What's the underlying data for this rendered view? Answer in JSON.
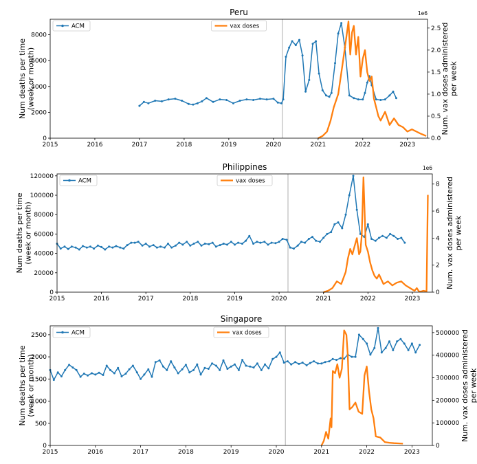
{
  "chart_data": [
    {
      "type": "line",
      "title": "Peru",
      "ylabel_left": "Num deaths per time\n(week or month)",
      "ylabel_right": "Num. vax doses administered\nper week",
      "right_axis_multiplier": "1e6",
      "x_ticks": [
        "2015",
        "2016",
        "2017",
        "2018",
        "2019",
        "2020",
        "2021",
        "2022",
        "2023"
      ],
      "xlim": [
        2015.0,
        2023.45
      ],
      "left_ticks": [
        "0",
        "2000",
        "4000",
        "6000",
        "8000"
      ],
      "right_ticks": [
        "0.0",
        "0.5",
        "1.0",
        "1.5",
        "2.0",
        "2.5"
      ],
      "ylim_left": [
        0,
        9200
      ],
      "ylim_right": [
        0,
        2.7
      ],
      "vline_x": 2020.2,
      "series": [
        {
          "name": "ACM",
          "axis": "left",
          "color": "#1f77b4",
          "marker": "dot",
          "x": [
            2017.0,
            2017.1,
            2017.2,
            2017.35,
            2017.5,
            2017.65,
            2017.8,
            2017.95,
            2018.1,
            2018.2,
            2018.3,
            2018.4,
            2018.5,
            2018.65,
            2018.8,
            2018.95,
            2019.1,
            2019.25,
            2019.4,
            2019.55,
            2019.7,
            2019.85,
            2020.0,
            2020.1,
            2020.18,
            2020.22,
            2020.28,
            2020.35,
            2020.42,
            2020.5,
            2020.58,
            2020.65,
            2020.72,
            2020.8,
            2020.88,
            2020.95,
            2021.02,
            2021.1,
            2021.18,
            2021.25,
            2021.3,
            2021.38,
            2021.45,
            2021.52,
            2021.6,
            2021.7,
            2021.8,
            2021.9,
            2022.0,
            2022.05,
            2022.1,
            2022.15,
            2022.2,
            2022.3,
            2022.4,
            2022.5,
            2022.6,
            2022.68,
            2022.75
          ],
          "y": [
            2500,
            2800,
            2700,
            2900,
            2850,
            3000,
            3050,
            2900,
            2650,
            2600,
            2700,
            2850,
            3100,
            2800,
            3000,
            2950,
            2700,
            2900,
            3000,
            2950,
            3050,
            3000,
            3050,
            2750,
            2700,
            3000,
            6300,
            7000,
            7500,
            7200,
            7600,
            6400,
            3600,
            4500,
            7300,
            7500,
            5000,
            3700,
            3300,
            3200,
            3500,
            5800,
            8100,
            8900,
            7000,
            3300,
            3100,
            3000,
            3000,
            3500,
            4300,
            4800,
            4100,
            3000,
            2950,
            3000,
            3300,
            3600,
            3100
          ]
        },
        {
          "name": "vax doses",
          "axis": "right",
          "color": "#ff7f0e",
          "marker": "none",
          "x": [
            2021.0,
            2021.1,
            2021.2,
            2021.28,
            2021.35,
            2021.45,
            2021.55,
            2021.62,
            2021.68,
            2021.72,
            2021.76,
            2021.8,
            2021.85,
            2021.9,
            2021.95,
            2022.0,
            2022.05,
            2022.1,
            2022.15,
            2022.2,
            2022.25,
            2022.3,
            2022.35,
            2022.4,
            2022.5,
            2022.6,
            2022.7,
            2022.8,
            2022.9,
            2023.0,
            2023.1,
            2023.2,
            2023.3,
            2023.42
          ],
          "y": [
            0,
            0.05,
            0.15,
            0.4,
            0.7,
            1.0,
            1.7,
            2.2,
            2.65,
            1.9,
            2.4,
            2.55,
            1.9,
            2.3,
            1.4,
            1.8,
            2.0,
            1.5,
            1.3,
            1.4,
            0.9,
            0.7,
            0.5,
            0.4,
            0.6,
            0.3,
            0.45,
            0.3,
            0.25,
            0.15,
            0.2,
            0.15,
            0.1,
            0.05
          ]
        }
      ],
      "legend": [
        {
          "label": "ACM",
          "placement": "upper-left"
        },
        {
          "label": "vax doses",
          "placement": "upper-center"
        }
      ]
    },
    {
      "type": "line",
      "title": "Philippines",
      "ylabel_left": "Num deaths per time\n(week or month)",
      "ylabel_right": "Num. vax doses administered\nper week",
      "right_axis_multiplier": "1e6",
      "x_ticks": [
        "2015",
        "2016",
        "2017",
        "2018",
        "2019",
        "2020",
        "2021",
        "2022",
        "2023"
      ],
      "xlim": [
        2015.0,
        2023.45
      ],
      "left_ticks": [
        "0",
        "20000",
        "40000",
        "60000",
        "80000",
        "100000",
        "120000"
      ],
      "right_ticks": [
        "0",
        "2",
        "4",
        "6",
        "8"
      ],
      "ylim_left": [
        0,
        122000
      ],
      "ylim_right": [
        0,
        8.75
      ],
      "vline_x": 2020.2,
      "series": [
        {
          "name": "ACM",
          "axis": "left",
          "color": "#1f77b4",
          "marker": "dot",
          "x": [
            2015.0,
            2015.08,
            2015.17,
            2015.25,
            2015.33,
            2015.42,
            2015.5,
            2015.58,
            2015.67,
            2015.75,
            2015.83,
            2015.92,
            2016.0,
            2016.08,
            2016.17,
            2016.25,
            2016.33,
            2016.42,
            2016.5,
            2016.58,
            2016.67,
            2016.75,
            2016.83,
            2016.92,
            2017.0,
            2017.08,
            2017.17,
            2017.25,
            2017.33,
            2017.42,
            2017.5,
            2017.58,
            2017.67,
            2017.75,
            2017.83,
            2017.92,
            2018.0,
            2018.08,
            2018.17,
            2018.25,
            2018.33,
            2018.42,
            2018.5,
            2018.58,
            2018.67,
            2018.75,
            2018.83,
            2018.92,
            2019.0,
            2019.08,
            2019.17,
            2019.25,
            2019.33,
            2019.42,
            2019.5,
            2019.58,
            2019.67,
            2019.75,
            2019.83,
            2019.92,
            2020.0,
            2020.08,
            2020.17,
            2020.25,
            2020.33,
            2020.42,
            2020.5,
            2020.58,
            2020.67,
            2020.75,
            2020.83,
            2020.92,
            2021.0,
            2021.08,
            2021.17,
            2021.25,
            2021.33,
            2021.42,
            2021.5,
            2021.58,
            2021.67,
            2021.75,
            2021.83,
            2021.92,
            2022.0,
            2022.08,
            2022.17,
            2022.25,
            2022.33,
            2022.42,
            2022.5,
            2022.58,
            2022.67,
            2022.75,
            2022.83
          ],
          "y": [
            50000,
            45000,
            47000,
            44500,
            47000,
            46000,
            44000,
            47500,
            46000,
            47000,
            45000,
            48000,
            46500,
            44000,
            47000,
            46000,
            47500,
            46000,
            45000,
            48500,
            51000,
            51000,
            52000,
            48000,
            50000,
            47000,
            48500,
            46000,
            47000,
            46000,
            50000,
            46000,
            48000,
            51000,
            49000,
            52000,
            48000,
            50000,
            52000,
            48000,
            50000,
            49500,
            51000,
            47000,
            48500,
            50000,
            49000,
            52000,
            49000,
            51000,
            50000,
            53000,
            58000,
            50000,
            52000,
            51000,
            52000,
            49000,
            51000,
            50500,
            52000,
            55000,
            54000,
            46000,
            45000,
            48000,
            52000,
            51000,
            55000,
            57000,
            53000,
            52000,
            56000,
            60000,
            62000,
            70000,
            72000,
            66000,
            80000,
            100000,
            120000,
            85000,
            60000,
            57000,
            70000,
            55000,
            53000,
            56000,
            58000,
            56000,
            60000,
            58000,
            55000,
            56000,
            51000
          ]
        },
        {
          "name": "vax doses",
          "axis": "right",
          "color": "#ff7f0e",
          "marker": "none",
          "x": [
            2021.0,
            2021.1,
            2021.2,
            2021.3,
            2021.4,
            2021.5,
            2021.55,
            2021.6,
            2021.65,
            2021.7,
            2021.75,
            2021.8,
            2021.83,
            2021.86,
            2021.9,
            2021.95,
            2022.0,
            2022.05,
            2022.1,
            2022.15,
            2022.2,
            2022.25,
            2022.35,
            2022.45,
            2022.55,
            2022.65,
            2022.75,
            2022.85,
            2022.95,
            2023.0,
            2023.05,
            2023.1,
            2023.15,
            2023.2,
            2023.25,
            2023.32,
            2023.35
          ],
          "y": [
            0,
            0.1,
            0.3,
            0.8,
            0.6,
            1.5,
            2.5,
            3.2,
            2.8,
            3.4,
            4.0,
            2.8,
            3.0,
            4.2,
            8.5,
            3.5,
            3.0,
            2.2,
            1.6,
            1.2,
            1.0,
            1.3,
            0.6,
            0.8,
            0.5,
            0.7,
            0.8,
            0.5,
            0.3,
            0.2,
            0.1,
            0.3,
            0.05,
            0.05,
            0.1,
            0.05,
            7.2
          ]
        }
      ],
      "legend": [
        {
          "label": "ACM",
          "placement": "upper-left"
        },
        {
          "label": "vax doses",
          "placement": "upper-center"
        }
      ]
    },
    {
      "type": "line",
      "title": "Singapore",
      "ylabel_left": "Num deaths per time\n(week or month)",
      "ylabel_right": "Num. vax doses administered\nper week",
      "right_axis_multiplier": "",
      "x_ticks": [
        "2015",
        "2016",
        "2017",
        "2018",
        "2019",
        "2020",
        "2021",
        "2022",
        "2023"
      ],
      "xlim": [
        2015.0,
        2023.45
      ],
      "left_ticks": [
        "0",
        "500",
        "1000",
        "1500",
        "2000",
        "2500"
      ],
      "right_ticks": [
        "0",
        "100000",
        "200000",
        "300000",
        "400000",
        "500000"
      ],
      "ylim_left": [
        0,
        2700
      ],
      "ylim_right": [
        0,
        530000
      ],
      "vline_x": 2020.2,
      "series": [
        {
          "name": "ACM",
          "axis": "left",
          "color": "#1f77b4",
          "marker": "dot",
          "x": [
            2015.0,
            2015.08,
            2015.17,
            2015.25,
            2015.33,
            2015.42,
            2015.5,
            2015.58,
            2015.67,
            2015.75,
            2015.83,
            2015.92,
            2016.0,
            2016.08,
            2016.17,
            2016.25,
            2016.33,
            2016.42,
            2016.5,
            2016.58,
            2016.67,
            2016.75,
            2016.83,
            2016.92,
            2017.0,
            2017.08,
            2017.17,
            2017.25,
            2017.33,
            2017.42,
            2017.5,
            2017.58,
            2017.67,
            2017.75,
            2017.83,
            2017.92,
            2018.0,
            2018.08,
            2018.17,
            2018.25,
            2018.33,
            2018.42,
            2018.5,
            2018.58,
            2018.67,
            2018.75,
            2018.83,
            2018.92,
            2019.0,
            2019.08,
            2019.17,
            2019.25,
            2019.33,
            2019.42,
            2019.5,
            2019.58,
            2019.67,
            2019.75,
            2019.83,
            2019.92,
            2020.0,
            2020.08,
            2020.17,
            2020.25,
            2020.33,
            2020.42,
            2020.5,
            2020.58,
            2020.67,
            2020.75,
            2020.83,
            2020.92,
            2021.0,
            2021.08,
            2021.17,
            2021.25,
            2021.33,
            2021.42,
            2021.5,
            2021.58,
            2021.67,
            2021.75,
            2021.83,
            2021.92,
            2022.0,
            2022.08,
            2022.17,
            2022.25,
            2022.33,
            2022.42,
            2022.5,
            2022.58,
            2022.67,
            2022.75,
            2022.83,
            2022.92,
            2023.0,
            2023.08,
            2023.17
          ],
          "y": [
            1700,
            1480,
            1650,
            1560,
            1700,
            1820,
            1760,
            1700,
            1550,
            1620,
            1580,
            1630,
            1600,
            1640,
            1590,
            1800,
            1700,
            1630,
            1750,
            1560,
            1620,
            1720,
            1800,
            1650,
            1500,
            1600,
            1720,
            1550,
            1880,
            1920,
            1780,
            1700,
            1900,
            1760,
            1630,
            1720,
            1820,
            1650,
            1700,
            1830,
            1600,
            1750,
            1730,
            1850,
            1800,
            1700,
            1920,
            1730,
            1780,
            1830,
            1700,
            1930,
            1800,
            1780,
            1760,
            1850,
            1700,
            1830,
            1740,
            1950,
            2000,
            2100,
            1870,
            1900,
            1830,
            1880,
            1840,
            1870,
            1810,
            1860,
            1900,
            1850,
            1850,
            1880,
            1900,
            1950,
            1930,
            1970,
            1960,
            2050,
            2000,
            2000,
            2500,
            2400,
            2300,
            2050,
            2200,
            2650,
            2100,
            2200,
            2350,
            2150,
            2350,
            2400,
            2300,
            2150,
            2300,
            2100,
            2270
          ]
        },
        {
          "name": "vax doses",
          "axis": "right",
          "color": "#ff7f0e",
          "marker": "none",
          "x": [
            2021.0,
            2021.05,
            2021.1,
            2021.15,
            2021.2,
            2021.22,
            2021.25,
            2021.3,
            2021.35,
            2021.4,
            2021.45,
            2021.5,
            2021.55,
            2021.58,
            2021.62,
            2021.68,
            2021.75,
            2021.82,
            2021.9,
            2021.95,
            2022.0,
            2022.05,
            2022.1,
            2022.15,
            2022.2,
            2022.3,
            2022.4,
            2022.5,
            2022.6,
            2022.7,
            2022.8
          ],
          "y": [
            0,
            20000,
            60000,
            30000,
            120000,
            80000,
            330000,
            320000,
            360000,
            300000,
            340000,
            510000,
            490000,
            400000,
            160000,
            170000,
            190000,
            150000,
            140000,
            310000,
            350000,
            240000,
            160000,
            120000,
            40000,
            35000,
            15000,
            12000,
            10000,
            9000,
            8000
          ]
        }
      ],
      "legend": [
        {
          "label": "ACM",
          "placement": "upper-left"
        },
        {
          "label": "vax doses",
          "placement": "upper-center"
        }
      ]
    }
  ]
}
